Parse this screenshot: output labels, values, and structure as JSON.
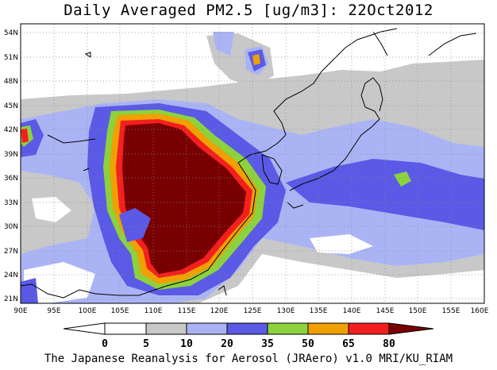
{
  "title": "Daily Averaged PM2.5 [ug/m3]: 22Oct2012",
  "credit": "The Japanese Reanalysis for Aerosol (JRAero) v1.0 MRI/KU_RIAM",
  "map": {
    "lon_labels": [
      "90E",
      "95E",
      "100E",
      "105E",
      "110E",
      "115E",
      "120E",
      "125E",
      "130E",
      "135E",
      "140E",
      "145E",
      "150E",
      "155E",
      "160E"
    ],
    "lat_labels": [
      "21N",
      "24N",
      "27N",
      "30N",
      "33N",
      "36N",
      "39N",
      "42N",
      "45N",
      "48N",
      "51N",
      "54N"
    ],
    "colors": {
      "c0": "#ffffff",
      "c5": "#c8c8c8",
      "c10": "#aab4f5",
      "c20": "#5a5ae6",
      "c35": "#8cd23c",
      "c50": "#f0a000",
      "c65": "#f51e1e",
      "c80": "#780000"
    }
  },
  "colorbar": {
    "labels": [
      "0",
      "5",
      "10",
      "20",
      "35",
      "50",
      "65",
      "80"
    ]
  }
}
